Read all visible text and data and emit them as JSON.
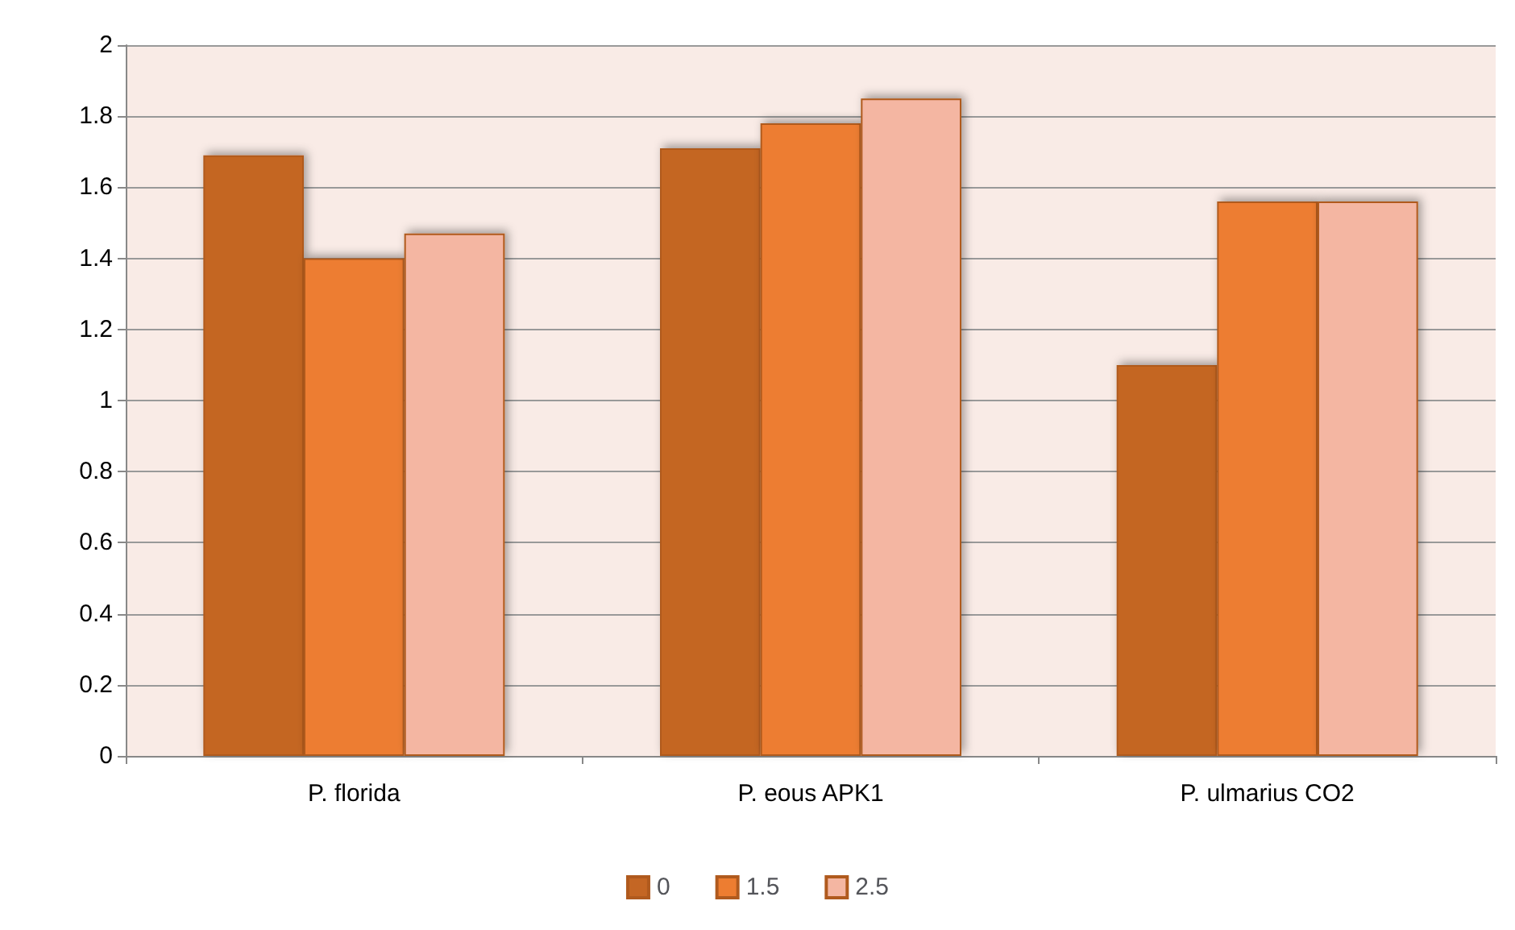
{
  "chart_data": {
    "type": "bar",
    "categories": [
      "P. florida",
      "P. eous APK1",
      "P. ulmarius CO2"
    ],
    "series": [
      {
        "name": "0",
        "color": "#c46624",
        "values": [
          1.69,
          1.71,
          1.1
        ]
      },
      {
        "name": "1.5",
        "color": "#ed7d31",
        "values": [
          1.4,
          1.78,
          1.56
        ]
      },
      {
        "name": "2.5",
        "color": "#f4b6a2",
        "values": [
          1.47,
          1.85,
          1.56
        ]
      }
    ],
    "ylim": [
      0,
      2
    ],
    "yticks": [
      0,
      0.2,
      0.4,
      0.6,
      0.8,
      1,
      1.2,
      1.4,
      1.6,
      1.8,
      2
    ],
    "grid": "y",
    "legend": "bottom"
  }
}
